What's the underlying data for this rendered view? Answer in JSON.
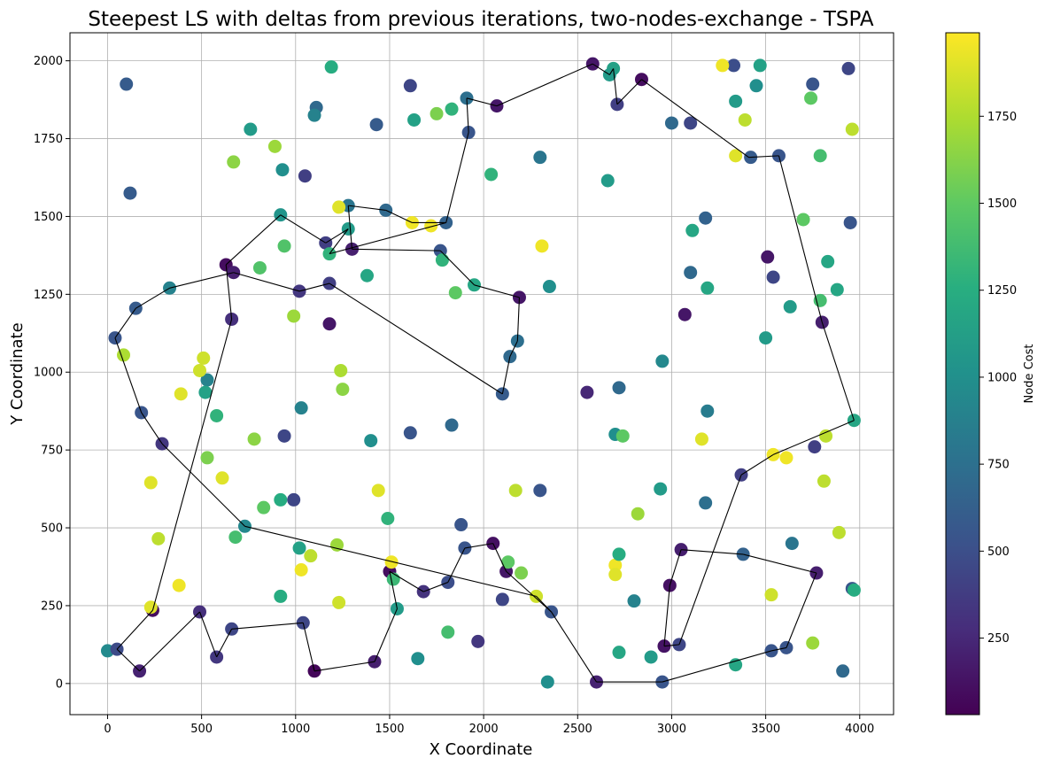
{
  "chart_data": {
    "type": "scatter",
    "title": "Steepest LS with deltas from previous iterations, two-nodes-exchange - TSPA",
    "xlabel": "X Coordinate",
    "ylabel": "Y Coordinate",
    "xlim": [
      -200,
      4180
    ],
    "ylim": [
      -100,
      2090
    ],
    "xticks": [
      0,
      500,
      1000,
      1500,
      2000,
      2500,
      3000,
      3500,
      4000
    ],
    "yticks": [
      0,
      250,
      500,
      750,
      1000,
      1250,
      1500,
      1750,
      2000
    ],
    "grid": true,
    "colorbar": {
      "label": "Node Cost",
      "colormap": "viridis",
      "range": [
        30,
        1990
      ],
      "ticks": [
        250,
        500,
        750,
        1000,
        1250,
        1500,
        1750
      ]
    },
    "nodes": [
      [
        0,
        105,
        960
      ],
      [
        50,
        110,
        480
      ],
      [
        170,
        40,
        220
      ],
      [
        240,
        235,
        100
      ],
      [
        230,
        245,
        1900
      ],
      [
        490,
        230,
        300
      ],
      [
        580,
        85,
        350
      ],
      [
        660,
        175,
        450
      ],
      [
        1040,
        195,
        450
      ],
      [
        1100,
        40,
        60
      ],
      [
        1420,
        70,
        200
      ],
      [
        1500,
        360,
        100
      ],
      [
        1540,
        240,
        1100
      ],
      [
        1510,
        390,
        1950
      ],
      [
        1650,
        80,
        1000
      ],
      [
        1680,
        295,
        320
      ],
      [
        1810,
        165,
        1400
      ],
      [
        1810,
        325,
        500
      ],
      [
        1900,
        435,
        550
      ],
      [
        1880,
        510,
        550
      ],
      [
        1970,
        135,
        350
      ],
      [
        2050,
        450,
        120
      ],
      [
        2100,
        270,
        450
      ],
      [
        2120,
        360,
        150
      ],
      [
        2130,
        390,
        1500
      ],
      [
        2200,
        355,
        1600
      ],
      [
        2280,
        280,
        1850
      ],
      [
        2340,
        5,
        1000
      ],
      [
        2360,
        230,
        550
      ],
      [
        2300,
        620,
        550
      ],
      [
        2170,
        620,
        1800
      ],
      [
        2600,
        5,
        220
      ],
      [
        2700,
        380,
        1950
      ],
      [
        2700,
        350,
        1900
      ],
      [
        2720,
        415,
        1250
      ],
      [
        2720,
        100,
        1200
      ],
      [
        2800,
        265,
        900
      ],
      [
        2820,
        545,
        1700
      ],
      [
        2890,
        85,
        1100
      ],
      [
        2940,
        625,
        1100
      ],
      [
        2950,
        5,
        550
      ],
      [
        2960,
        120,
        130
      ],
      [
        2990,
        315,
        120
      ],
      [
        3040,
        125,
        450
      ],
      [
        3050,
        430,
        200
      ],
      [
        3180,
        580,
        750
      ],
      [
        3340,
        60,
        1200
      ],
      [
        3370,
        670,
        400
      ],
      [
        3380,
        415,
        650
      ],
      [
        3530,
        285,
        1850
      ],
      [
        3530,
        105,
        550
      ],
      [
        3610,
        115,
        550
      ],
      [
        3640,
        450,
        800
      ],
      [
        3750,
        130,
        1700
      ],
      [
        3770,
        355,
        200
      ],
      [
        3890,
        485,
        1800
      ],
      [
        3910,
        40,
        700
      ],
      [
        3960,
        305,
        550
      ],
      [
        3970,
        300,
        1250
      ],
      [
        3810,
        650,
        1800
      ],
      [
        3820,
        795,
        1800
      ],
      [
        3760,
        760,
        400
      ],
      [
        3970,
        845,
        1200
      ],
      [
        3540,
        735,
        1950
      ],
      [
        3610,
        725,
        1950
      ],
      [
        3160,
        785,
        1900
      ],
      [
        3190,
        875,
        850
      ],
      [
        2700,
        800,
        1000
      ],
      [
        2740,
        795,
        1500
      ],
      [
        2720,
        950,
        700
      ],
      [
        2550,
        935,
        250
      ],
      [
        2950,
        1035,
        950
      ],
      [
        3070,
        1185,
        150
      ],
      [
        3100,
        1320,
        700
      ],
      [
        3500,
        1110,
        1100
      ],
      [
        3510,
        1370,
        150
      ],
      [
        3540,
        1305,
        450
      ],
      [
        3630,
        1210,
        1100
      ],
      [
        3190,
        1270,
        1200
      ],
      [
        3110,
        1455,
        1200
      ],
      [
        3180,
        1495,
        650
      ],
      [
        3700,
        1490,
        1500
      ],
      [
        3790,
        1230,
        1400
      ],
      [
        3800,
        1160,
        200
      ],
      [
        3830,
        1355,
        1200
      ],
      [
        3880,
        1265,
        1200
      ],
      [
        3950,
        1480,
        550
      ],
      [
        3740,
        1880,
        1500
      ],
      [
        3790,
        1695,
        1400
      ],
      [
        3750,
        1925,
        550
      ],
      [
        3940,
        1975,
        450
      ],
      [
        3960,
        1780,
        1800
      ],
      [
        3570,
        1695,
        550
      ],
      [
        3420,
        1690,
        600
      ],
      [
        3390,
        1810,
        1800
      ],
      [
        3340,
        1695,
        1900
      ],
      [
        3340,
        1870,
        1100
      ],
      [
        3330,
        1985,
        500
      ],
      [
        3270,
        1985,
        1950
      ],
      [
        3450,
        1920,
        1000
      ],
      [
        3470,
        1985,
        1150
      ],
      [
        3100,
        1800,
        450
      ],
      [
        3000,
        1800,
        700
      ],
      [
        2840,
        1940,
        100
      ],
      [
        2710,
        1860,
        400
      ],
      [
        2690,
        1975,
        1150
      ],
      [
        2670,
        1955,
        1100
      ],
      [
        2580,
        1990,
        150
      ],
      [
        2660,
        1615,
        1100
      ],
      [
        2300,
        1690,
        800
      ],
      [
        2070,
        1855,
        150
      ],
      [
        2040,
        1635,
        1300
      ],
      [
        1910,
        1880,
        750
      ],
      [
        1920,
        1770,
        550
      ],
      [
        1830,
        1845,
        1300
      ],
      [
        1750,
        1830,
        1600
      ],
      [
        1630,
        1810,
        1150
      ],
      [
        1610,
        1920,
        450
      ],
      [
        1430,
        1795,
        600
      ],
      [
        1190,
        1980,
        1250
      ],
      [
        1110,
        1850,
        700
      ],
      [
        1100,
        1825,
        900
      ],
      [
        760,
        1780,
        1100
      ],
      [
        890,
        1725,
        1700
      ],
      [
        930,
        1650,
        1000
      ],
      [
        1050,
        1630,
        400
      ],
      [
        670,
        1675,
        1650
      ],
      [
        1280,
        1535,
        800
      ],
      [
        1230,
        1530,
        1900
      ],
      [
        1480,
        1520,
        700
      ],
      [
        1620,
        1480,
        1950
      ],
      [
        1720,
        1470,
        1950
      ],
      [
        1800,
        1480,
        650
      ],
      [
        2310,
        1405,
        1950
      ],
      [
        1280,
        1460,
        1100
      ],
      [
        1300,
        1395,
        200
      ],
      [
        1160,
        1415,
        400
      ],
      [
        1180,
        1380,
        1300
      ],
      [
        920,
        1505,
        1050
      ],
      [
        940,
        1405,
        1450
      ],
      [
        810,
        1335,
        1450
      ],
      [
        630,
        1345,
        100
      ],
      [
        670,
        1320,
        200
      ],
      [
        1020,
        1260,
        350
      ],
      [
        1180,
        1285,
        400
      ],
      [
        1380,
        1310,
        1200
      ],
      [
        1770,
        1390,
        550
      ],
      [
        1780,
        1360,
        1300
      ],
      [
        1850,
        1255,
        1500
      ],
      [
        1950,
        1280,
        1200
      ],
      [
        2190,
        1240,
        150
      ],
      [
        2350,
        1275,
        1000
      ],
      [
        2180,
        1100,
        750
      ],
      [
        2140,
        1050,
        700
      ],
      [
        2100,
        930,
        600
      ],
      [
        1180,
        1155,
        150
      ],
      [
        990,
        1180,
        1700
      ],
      [
        1240,
        1005,
        1750
      ],
      [
        1250,
        945,
        1650
      ],
      [
        1030,
        885,
        900
      ],
      [
        1400,
        780,
        1000
      ],
      [
        1610,
        805,
        550
      ],
      [
        1830,
        830,
        700
      ],
      [
        1440,
        620,
        1900
      ],
      [
        1490,
        530,
        1300
      ],
      [
        940,
        795,
        450
      ],
      [
        990,
        590,
        450
      ],
      [
        920,
        590,
        1250
      ],
      [
        830,
        565,
        1500
      ],
      [
        780,
        785,
        1650
      ],
      [
        730,
        505,
        950
      ],
      [
        680,
        470,
        1400
      ],
      [
        610,
        660,
        1900
      ],
      [
        530,
        725,
        1600
      ],
      [
        580,
        860,
        1300
      ],
      [
        530,
        975,
        900
      ],
      [
        520,
        935,
        1150
      ],
      [
        510,
        1045,
        1850
      ],
      [
        490,
        1005,
        1850
      ],
      [
        390,
        930,
        1900
      ],
      [
        330,
        1270,
        900
      ],
      [
        150,
        1205,
        600
      ],
      [
        40,
        1110,
        550
      ],
      [
        85,
        1055,
        1750
      ],
      [
        180,
        870,
        550
      ],
      [
        290,
        770,
        350
      ],
      [
        660,
        1170,
        300
      ],
      [
        230,
        645,
        1900
      ],
      [
        270,
        465,
        1800
      ],
      [
        380,
        315,
        1950
      ],
      [
        100,
        1925,
        600
      ],
      [
        120,
        1575,
        600
      ],
      [
        1020,
        435,
        1150
      ],
      [
        1030,
        365,
        1950
      ],
      [
        1080,
        410,
        1800
      ],
      [
        1220,
        445,
        1700
      ],
      [
        1230,
        260,
        1850
      ],
      [
        920,
        280,
        1250
      ],
      [
        1520,
        335,
        1350
      ]
    ],
    "path": [
      [
        170,
        40
      ],
      [
        50,
        110
      ],
      [
        240,
        235
      ],
      [
        660,
        1170
      ],
      [
        630,
        1345
      ],
      [
        920,
        1505
      ],
      [
        1160,
        1415
      ],
      [
        1280,
        1460
      ],
      [
        1180,
        1380
      ],
      [
        1800,
        1480
      ],
      [
        1920,
        1770
      ],
      [
        1910,
        1880
      ],
      [
        2070,
        1855
      ],
      [
        2580,
        1990
      ],
      [
        2670,
        1955
      ],
      [
        2690,
        1975
      ],
      [
        2710,
        1860
      ],
      [
        2840,
        1940
      ],
      [
        3410,
        1690
      ],
      [
        3570,
        1695
      ],
      [
        3800,
        1160
      ],
      [
        3970,
        845
      ],
      [
        3540,
        735
      ],
      [
        3370,
        670
      ],
      [
        3040,
        125
      ],
      [
        2960,
        120
      ],
      [
        2990,
        315
      ],
      [
        3050,
        430
      ],
      [
        3380,
        415
      ],
      [
        3770,
        355
      ],
      [
        3610,
        115
      ],
      [
        3530,
        105
      ],
      [
        2950,
        5
      ],
      [
        2600,
        5
      ],
      [
        2360,
        230
      ],
      [
        2120,
        360
      ],
      [
        2050,
        450
      ],
      [
        1900,
        435
      ],
      [
        1810,
        325
      ],
      [
        1680,
        295
      ],
      [
        1500,
        360
      ],
      [
        1540,
        240
      ],
      [
        1420,
        70
      ],
      [
        1100,
        40
      ],
      [
        1040,
        195
      ],
      [
        660,
        175
      ],
      [
        580,
        85
      ],
      [
        490,
        230
      ],
      [
        170,
        40
      ]
    ],
    "path2": [
      [
        290,
        770
      ],
      [
        180,
        870
      ],
      [
        40,
        1110
      ],
      [
        150,
        1205
      ],
      [
        330,
        1270
      ],
      [
        670,
        1320
      ],
      [
        1020,
        1260
      ],
      [
        1180,
        1285
      ],
      [
        2100,
        930
      ],
      [
        2140,
        1050
      ],
      [
        2180,
        1100
      ],
      [
        2190,
        1240
      ],
      [
        1950,
        1280
      ],
      [
        1770,
        1390
      ],
      [
        1300,
        1395
      ],
      [
        1280,
        1535
      ],
      [
        1480,
        1520
      ],
      [
        1620,
        1480
      ],
      [
        1800,
        1480
      ]
    ],
    "path3": [
      [
        290,
        770
      ],
      [
        730,
        505
      ],
      [
        2280,
        280
      ],
      [
        2360,
        230
      ]
    ]
  }
}
